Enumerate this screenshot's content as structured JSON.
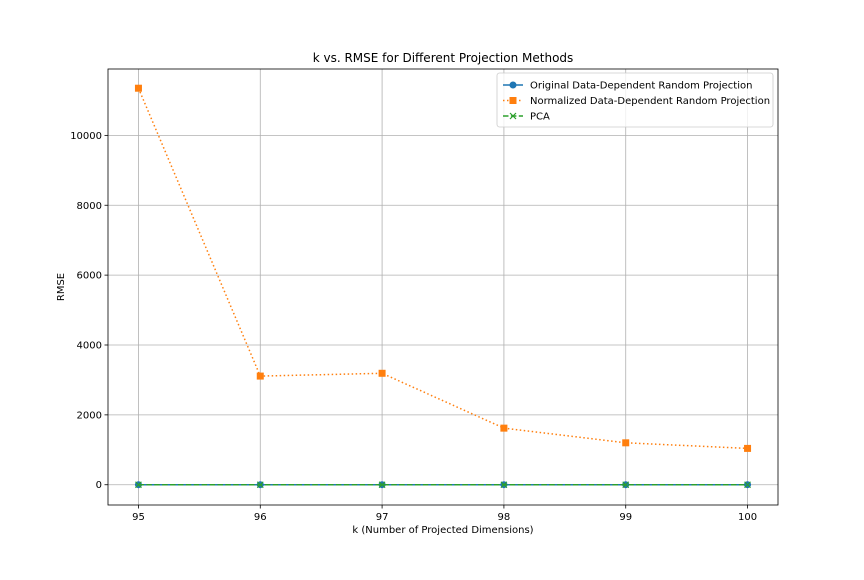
{
  "chart_data": {
    "type": "line",
    "title": "k vs. RMSE for Different Projection Methods",
    "xlabel": "k (Number of Projected Dimensions)",
    "ylabel": "RMSE",
    "x": [
      95,
      96,
      97,
      98,
      99,
      100
    ],
    "x_tick_labels": [
      "95",
      "96",
      "97",
      "98",
      "99",
      "100"
    ],
    "y_ticks": [
      0,
      2000,
      4000,
      6000,
      8000,
      10000
    ],
    "y_tick_labels": [
      "0",
      "2000",
      "4000",
      "6000",
      "8000",
      "10000"
    ],
    "xlim": [
      94.75,
      100.25
    ],
    "ylim": [
      -580,
      11900
    ],
    "grid": true,
    "legend_position": "top-right",
    "series": [
      {
        "name": "Original Data-Dependent Random Projection",
        "values": [
          1,
          1,
          1,
          1,
          1,
          1
        ],
        "color": "#1f77b4",
        "line_style": "solid",
        "marker": "circle"
      },
      {
        "name": "Normalized Data-Dependent Random Projection",
        "values": [
          11350,
          3110,
          3190,
          1620,
          1200,
          1040
        ],
        "color": "#ff7f0e",
        "line_style": "dotted",
        "marker": "square"
      },
      {
        "name": "PCA",
        "values": [
          0,
          0,
          0,
          0,
          0,
          0
        ],
        "color": "#2ca02c",
        "line_style": "dashed",
        "marker": "x"
      }
    ]
  }
}
